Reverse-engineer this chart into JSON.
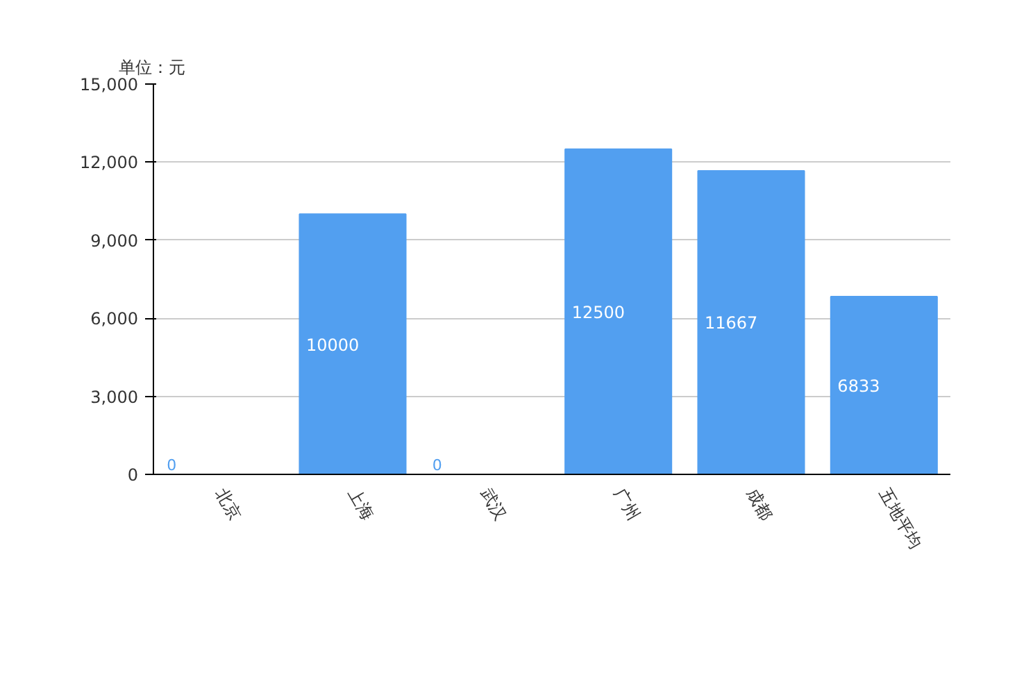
{
  "chart_data": {
    "type": "bar",
    "ylabel": "单位：元",
    "categories": [
      "北京",
      "上海",
      "武汉",
      "广州",
      "成都",
      "五地平均"
    ],
    "values": [
      0,
      10000,
      0,
      12500,
      11667,
      6833
    ],
    "color": "#529ff0",
    "ylim": [
      0,
      15000
    ],
    "yticks": [
      {
        "value": 0,
        "label": "0"
      },
      {
        "value": 3000,
        "label": "3,000"
      },
      {
        "value": 6000,
        "label": "6,000"
      },
      {
        "value": 9000,
        "label": "9,000"
      },
      {
        "value": 12000,
        "label": "12,000"
      },
      {
        "value": 15000,
        "label": "15,000"
      }
    ],
    "grid": "y",
    "data_labels": true
  }
}
